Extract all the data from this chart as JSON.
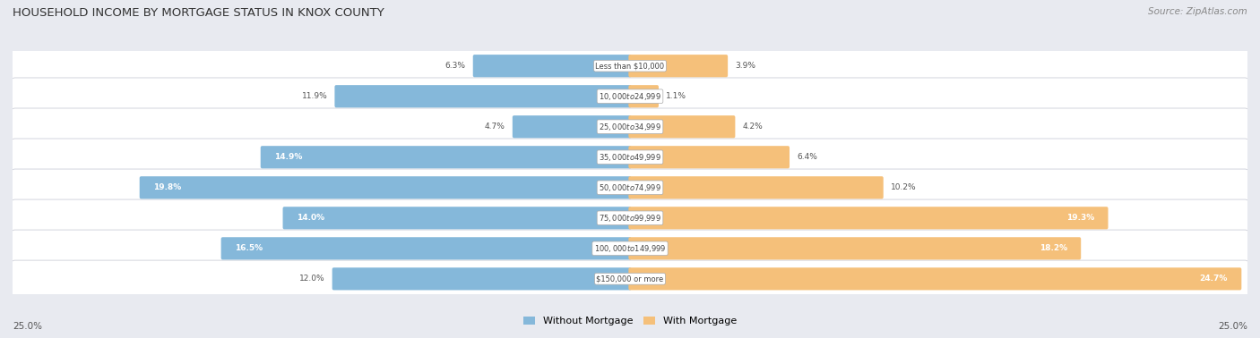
{
  "title": "HOUSEHOLD INCOME BY MORTGAGE STATUS IN KNOX COUNTY",
  "source": "Source: ZipAtlas.com",
  "categories": [
    "Less than $10,000",
    "$10,000 to $24,999",
    "$25,000 to $34,999",
    "$35,000 to $49,999",
    "$50,000 to $74,999",
    "$75,000 to $99,999",
    "$100,000 to $149,999",
    "$150,000 or more"
  ],
  "without_mortgage": [
    6.3,
    11.9,
    4.7,
    14.9,
    19.8,
    14.0,
    16.5,
    12.0
  ],
  "with_mortgage": [
    3.9,
    1.1,
    4.2,
    6.4,
    10.2,
    19.3,
    18.2,
    24.7
  ],
  "without_mortgage_color": "#85b8da",
  "with_mortgage_color": "#f5c07a",
  "background_color": "#e8eaf0",
  "row_bg_color": "#f0f0f4",
  "max_val": 25.0,
  "legend_without": "Without Mortgage",
  "legend_with": "With Mortgage",
  "axis_label_left": "25.0%",
  "axis_label_right": "25.0%"
}
